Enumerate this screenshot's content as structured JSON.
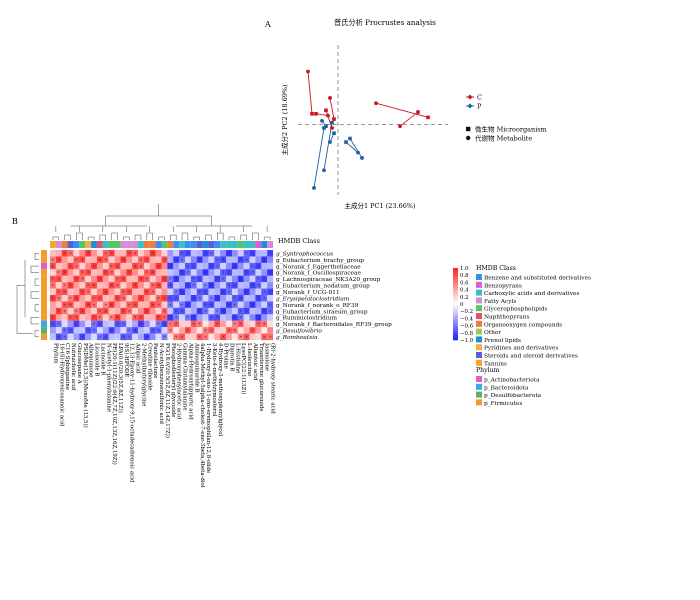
{
  "panel_a_label": "A",
  "panel_b_label": "B",
  "chart_data": [
    {
      "type": "scatter",
      "title": "普氏分析 Procrustes analysis",
      "xlabel": "主成分1 PC1 (23.66%)",
      "ylabel": "主成分2 PC2 (18.69%)",
      "xlim": [
        -0.2,
        0.55
      ],
      "ylim": [
        -0.4,
        0.45
      ],
      "series": [
        {
          "name": "C",
          "color": "#c8161d",
          "points": [
            {
              "mic": [
                -0.13,
                0.06
              ],
              "met": [
                -0.15,
                0.3
              ]
            },
            {
              "mic": [
                -0.11,
                0.06
              ],
              "met": [
                -0.05,
                0.05
              ]
            },
            {
              "mic": [
                -0.02,
                0.03
              ],
              "met": [
                -0.04,
                0.15
              ]
            },
            {
              "mic": [
                -0.06,
                0.08
              ],
              "met": [
                -0.03,
                -0.02
              ]
            },
            {
              "mic": [
                0.45,
                0.04
              ],
              "met": [
                0.19,
                0.12
              ]
            },
            {
              "mic": [
                0.4,
                0.07
              ],
              "met": [
                0.31,
                -0.01
              ]
            }
          ]
        },
        {
          "name": "P",
          "color": "#1f5fa6",
          "points": [
            {
              "mic": [
                -0.07,
                -0.02
              ],
              "met": [
                -0.12,
                -0.36
              ]
            },
            {
              "mic": [
                -0.03,
                0.01
              ],
              "met": [
                -0.07,
                -0.26
              ]
            },
            {
              "mic": [
                0.06,
                -0.08
              ],
              "met": [
                0.12,
                -0.19
              ]
            },
            {
              "mic": [
                0.04,
                -0.1
              ],
              "met": [
                0.1,
                -0.16
              ]
            },
            {
              "mic": [
                -0.02,
                -0.05
              ],
              "met": [
                -0.04,
                -0.1
              ]
            },
            {
              "mic": [
                -0.06,
                -0.01
              ],
              "met": [
                -0.08,
                0.02
              ]
            }
          ]
        }
      ],
      "shape_legend": [
        {
          "shape": "square",
          "label": "微生物  Microorganism"
        },
        {
          "shape": "circle",
          "label": "代谢物  Metabolite"
        }
      ]
    },
    {
      "type": "heatmap",
      "annotation_title": "HMDB Class",
      "color_scale": {
        "min": -1.0,
        "max": 1.0,
        "ticks": [
          "1.0",
          "0.8",
          "0.6",
          "0.4",
          "0.2",
          "0",
          "−0.2",
          "−0.4",
          "−0.6",
          "−0.8",
          "−1.0"
        ]
      },
      "rows": [
        {
          "label": "g_Syntrophococcus",
          "phylum": "p_Firmicutes",
          "italic": true
        },
        {
          "label": "g_Eubacterium_brachy_group",
          "phylum": "p_Firmicutes",
          "italic": false
        },
        {
          "label": "g_Norank_f_Eggerthellaceae",
          "phylum": "p_Actinobacteriota",
          "italic": false
        },
        {
          "label": "g_Norank_f_Oscillospiraceae",
          "phylum": "p_Firmicutes",
          "italic": false
        },
        {
          "label": "g_Lachnospiraceae_NK3A20_group",
          "phylum": "p_Firmicutes",
          "italic": false
        },
        {
          "label": "g_Eubacterium_nodatum_group",
          "phylum": "p_Firmicutes",
          "italic": false
        },
        {
          "label": "g_Norank_f_UCG-011",
          "phylum": "p_Firmicutes",
          "italic": false
        },
        {
          "label": "g_Erysipelatoclostridium",
          "phylum": "p_Firmicutes",
          "italic": true
        },
        {
          "label": "g_Norank_f_norank_o_RF39",
          "phylum": "p_Firmicutes",
          "italic": false
        },
        {
          "label": "g_Eubacterium_siraeum_group",
          "phylum": "p_Firmicutes",
          "italic": false
        },
        {
          "label": "g_Ruminiclostridium",
          "phylum": "p_Firmicutes",
          "italic": false
        },
        {
          "label": "g_Norank_f_Bacteroidales_RF39_group",
          "phylum": "p_Bacteroidota",
          "italic": false
        },
        {
          "label": "g_Desulfovibrio",
          "phylum": "p_Desulfobacterota",
          "italic": true
        },
        {
          "label": "g_Romboutsia",
          "phylum": "p_Firmicutes",
          "italic": true
        }
      ],
      "columns": [
        {
          "label": "Phylum",
          "hmdb": "Tannins"
        },
        {
          "label": "16-(S)-Hydroxyeicosanoic acid",
          "hmdb": "Fatty Acyls"
        },
        {
          "label": "C16 Sphinganine",
          "hmdb": "Organooxygen compounds"
        },
        {
          "label": "Nutriacholic acid",
          "hmdb": "Steroids and steroid derivatives"
        },
        {
          "label": "Glucosepane A",
          "hmdb": "Benzene and substituted derivatives"
        },
        {
          "label": "PS(DMe(13,5)/MonoMe (13,5))",
          "hmdb": "Glycerophospholipids"
        },
        {
          "label": "Alboquinone",
          "hmdb": "Pyridines and derivatives"
        },
        {
          "label": "Licoisoide B",
          "hmdb": "Prenol lipids"
        },
        {
          "label": "Lacinoide R",
          "hmdb": "Naphthopyrans"
        },
        {
          "label": "N-Acetyl-1-phenylalanine",
          "hmdb": "Carboxylic acids and derivatives"
        },
        {
          "label": "PE(20:1(11Z)/22:6(4Z,7Z,10Z,13Z,16Z,19Z))",
          "hmdb": "Glycerophospholipids"
        },
        {
          "label": "LPA(0:0/20:3(5Z,8Z,11Z))",
          "hmdb": "Glycerophospholipids"
        },
        {
          "label": "9(S)-HPODE",
          "hmdb": "Fatty Acyls"
        },
        {
          "label": "12,13-Epoxy-11-hydroxy-9,15-octadecadienoic acid",
          "hmdb": "Fatty Acyls"
        },
        {
          "label": "Adipic acid",
          "hmdb": "Fatty Acyls"
        },
        {
          "label": "2-Methylbutyrylglycine",
          "hmdb": "Carboxylic acids and derivatives"
        },
        {
          "label": "Creatine riboside",
          "hmdb": "Organooxygen compounds"
        },
        {
          "label": "Pantolactone",
          "hmdb": "Organooxygen compounds"
        },
        {
          "label": "N-Acetylbenzenesulfonic acid",
          "hmdb": "Benzene and substituted derivatives"
        },
        {
          "label": "PG(18:0/20:5(5Z,8Z,11Z,14Z,17Z))",
          "hmdb": "Glycerophospholipids"
        },
        {
          "label": "Phosphodiesteryl glycoside",
          "hmdb": "Organooxygen compounds"
        },
        {
          "label": "2-Hydroxyphenylacetic acid",
          "hmdb": "Benzene and substituted derivatives"
        },
        {
          "label": "Gamma-Glutamylalanine",
          "hmdb": "Carboxylic acids and derivatives"
        },
        {
          "label": "Alpha-Hydroxyhippuric acid",
          "hmdb": "Benzene and substituted derivatives"
        },
        {
          "label": "Aminoquinuride B",
          "hmdb": "Benzene and substituted derivatives"
        },
        {
          "label": "4alpha-Methyl-5alpha-cholest-7-ene-3beta,4beta-diol",
          "hmdb": "Steroids and steroid derivatives"
        },
        {
          "label": "1-Hydroxy-8-oxo-11-oxo-eremophilan-12,8-olide",
          "hmdb": "Prenol lipids"
        },
        {
          "label": "3-Keto-4-methylzymosterol",
          "hmdb": "Steroids and steroid derivatives"
        },
        {
          "label": "4-Hydroxy-3-methoxyphenylglycol",
          "hmdb": "Benzene and substituted derivatives"
        },
        {
          "label": "D-Proline",
          "hmdb": "Carboxylic acids and derivatives"
        },
        {
          "label": "Diprotin B",
          "hmdb": "Carboxylic acids and derivatives"
        },
        {
          "label": "L-Histidine",
          "hmdb": "Carboxylic acids and derivatives"
        },
        {
          "label": "LysoPC(22:1(13Z))",
          "hmdb": "Glycerophospholipids"
        },
        {
          "label": "L-Isoleucine",
          "hmdb": "Carboxylic acids and derivatives"
        },
        {
          "label": "Allantoic acid",
          "hmdb": "Carboxylic acids and derivatives"
        },
        {
          "label": "Triamterene glucuronide",
          "hmdb": "Benzopyrans"
        },
        {
          "label": "Jasmolone",
          "hmdb": "Prenol lipids"
        },
        {
          "label": "(R)-2-hydroxy stearic acid",
          "hmdb": "Fatty Acyls"
        }
      ],
      "hmdb_legend": [
        {
          "label": "Benzene and substituted derivatives",
          "color": "#3b8ef0"
        },
        {
          "label": "Benzopyrans",
          "color": "#e15ccc"
        },
        {
          "label": "Carboxylic acids and derivatives",
          "color": "#3bc0c0"
        },
        {
          "label": "Fatty Acyls",
          "color": "#d68ad8"
        },
        {
          "label": "Glycerophospholipids",
          "color": "#57c46b"
        },
        {
          "label": "Naphthopyrans",
          "color": "#e34f6f"
        },
        {
          "label": "Organooxygen compounds",
          "color": "#f07c3a"
        },
        {
          "label": "Other",
          "color": "#9acd58"
        },
        {
          "label": "Prenol lipids",
          "color": "#1f8fd6"
        },
        {
          "label": "Pyridines and derivatives",
          "color": "#f2b13c"
        },
        {
          "label": "Steroids and steroid derivatives",
          "color": "#5a5fd6"
        },
        {
          "label": "Tannins",
          "color": "#f6a623"
        }
      ],
      "phylum_title": "Phylum",
      "phylum_legend": [
        {
          "label": "p_Actinobacteriota",
          "color": "#e75cc6"
        },
        {
          "label": "p_Bacteroidota",
          "color": "#3aa8e8"
        },
        {
          "label": "p_Desulfobacterota",
          "color": "#58b368"
        },
        {
          "label": "p_Firmicutes",
          "color": "#f29b31"
        }
      ],
      "cell_mark": "*"
    }
  ]
}
